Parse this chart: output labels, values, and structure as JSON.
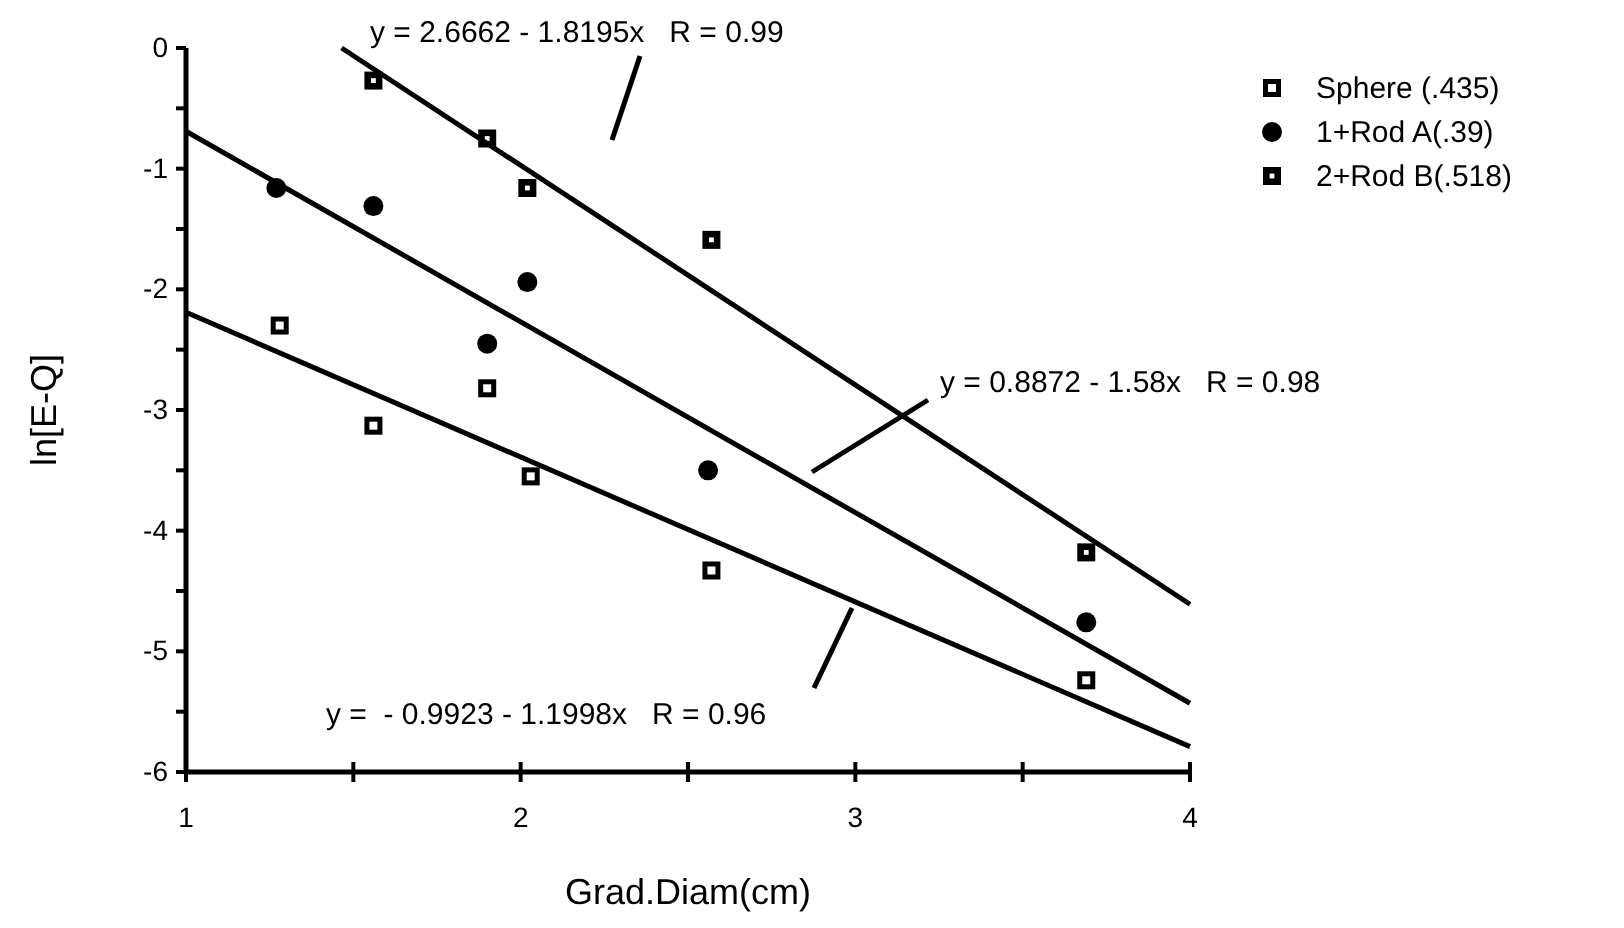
{
  "chart_data": {
    "type": "scatter",
    "xlabel": "Grad.Diam(cm)",
    "ylabel": "ln[E-Q]",
    "xlim": [
      1,
      4
    ],
    "ylim": [
      -6,
      0
    ],
    "xticks": [
      1,
      {
        "value": 1.5,
        "label": null
      },
      2,
      {
        "value": 2.5,
        "label": null
      },
      3,
      {
        "value": 3.5,
        "label": null
      },
      4
    ],
    "yticks": [
      -6,
      {
        "value": -5.5,
        "label": null
      },
      -5,
      {
        "value": -4.5,
        "label": null
      },
      -4,
      {
        "value": -3.5,
        "label": null
      },
      -3,
      {
        "value": -2.5,
        "label": null
      },
      -2,
      {
        "value": -1.5,
        "label": null
      },
      -1,
      {
        "value": -0.5,
        "label": null
      },
      0
    ],
    "legend": "top right",
    "grid": false,
    "series": [
      {
        "name": "Sphere (.435)",
        "color": "#000000",
        "marker": "square",
        "x": [
          1.28,
          1.56,
          1.9,
          2.03,
          2.57,
          3.69
        ],
        "values": [
          -2.3,
          -3.13,
          -2.82,
          -3.55,
          -4.33,
          -5.24
        ]
      },
      {
        "name": "1+Rod A(.39)",
        "color": "#000000",
        "marker": "circle",
        "x": [
          1.27,
          1.56,
          1.9,
          2.02,
          2.56,
          3.69
        ],
        "values": [
          -1.16,
          -1.31,
          -2.45,
          -1.94,
          -3.5,
          -4.76
        ]
      },
      {
        "name": "2+Rod B(.518)",
        "color": "#000000",
        "marker": "square",
        "x": [
          1.56,
          1.9,
          2.02,
          2.57,
          3.69
        ],
        "values": [
          -0.27,
          -0.75,
          -1.16,
          -1.59,
          -4.18
        ]
      },
      {
        "type": "line",
        "color": "#000000",
        "x": [
          1.465,
          4
        ],
        "values": [
          0,
          -4.61
        ]
      },
      {
        "type": "line",
        "color": "#000000",
        "x": [
          1,
          4
        ],
        "values": [
          -0.69,
          -5.43
        ]
      },
      {
        "type": "line",
        "color": "#000000",
        "x": [
          1,
          4
        ],
        "values": [
          -2.19,
          -5.79
        ]
      }
    ],
    "annotations": [
      "y = 2.6662 - 1.8195x   R = 0.99",
      "y = 0.8872 - 1.58x   R = 0.98",
      "y =  - 0.9923 - 1.1998x   R = 0.96"
    ]
  }
}
